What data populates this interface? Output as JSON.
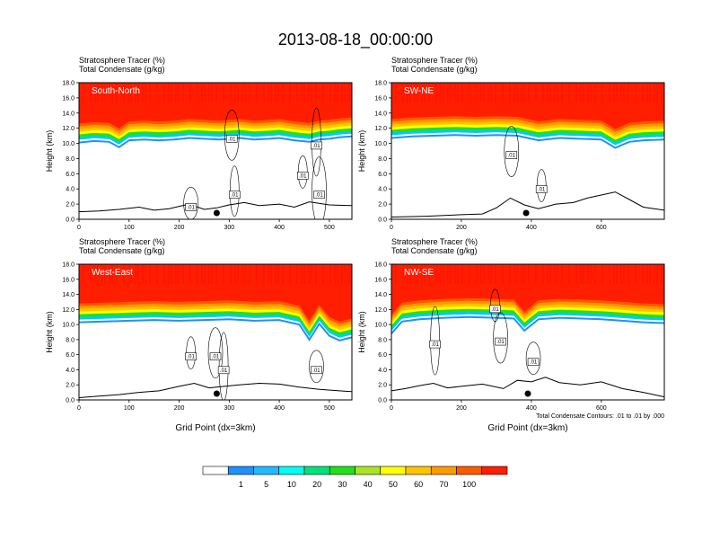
{
  "title": "2013-08-18_00:00:00",
  "chart_data": [
    {
      "type": "heatmap",
      "panel_label": "South-North",
      "subtitle_lines": [
        "Stratosphere Tracer   (%)",
        "Total Condensate   (g/kg)"
      ],
      "xlabel": "",
      "ylabel": "Height (km)",
      "xlim": [
        0,
        545
      ],
      "ylim": [
        0,
        18
      ],
      "x_ticks": [
        "0",
        "100",
        "200",
        "300",
        "400",
        "500"
      ],
      "y_ticks": [
        "0.0",
        "2.0",
        "4.0",
        "6.0",
        "8.0",
        "10.0",
        "12.0",
        "14.0",
        "16.0",
        "18.0"
      ],
      "tropopause_profile": {
        "x": [
          0,
          30,
          60,
          80,
          100,
          130,
          160,
          190,
          220,
          250,
          280,
          300,
          320,
          350,
          380,
          400,
          430,
          460,
          480,
          500,
          520,
          545
        ],
        "y": [
          12.6,
          12.8,
          12.7,
          12.0,
          12.9,
          13.0,
          12.9,
          13.0,
          13.2,
          13.1,
          13.0,
          13.1,
          13.2,
          13.0,
          13.1,
          13.2,
          12.9,
          12.7,
          13.0,
          13.1,
          13.3,
          13.4
        ]
      },
      "terrain": {
        "x": [
          0,
          40,
          80,
          120,
          150,
          180,
          200,
          220,
          250,
          275,
          300,
          330,
          360,
          400,
          430,
          460,
          500,
          545
        ],
        "y": [
          1.0,
          1.1,
          1.3,
          1.6,
          1.2,
          1.4,
          1.7,
          2.0,
          1.3,
          1.5,
          1.9,
          2.2,
          1.8,
          2.0,
          1.6,
          2.3,
          1.9,
          1.8
        ]
      },
      "marker_x": 275,
      "contour_labels": [
        ".01",
        ".01",
        ".01",
        ".01",
        ".01",
        ".01"
      ]
    },
    {
      "type": "heatmap",
      "panel_label": "SW-NE",
      "subtitle_lines": [
        "Stratosphere Tracer   (%)",
        "Total Condensate   (g/kg)"
      ],
      "xlabel": "",
      "ylabel": "Height (km)",
      "xlim": [
        0,
        780
      ],
      "ylim": [
        0,
        18
      ],
      "x_ticks": [
        "0",
        "200",
        "400",
        "600"
      ],
      "y_ticks": [
        "0.0",
        "2.0",
        "4.0",
        "6.0",
        "8.0",
        "10.0",
        "12.0",
        "14.0",
        "16.0",
        "18.0"
      ],
      "tropopause_profile": {
        "x": [
          0,
          60,
          120,
          180,
          240,
          300,
          360,
          420,
          480,
          540,
          600,
          640,
          680,
          720,
          780
        ],
        "y": [
          13.2,
          13.4,
          13.5,
          13.6,
          13.5,
          13.6,
          13.5,
          12.9,
          13.2,
          13.1,
          13.0,
          11.9,
          12.7,
          12.9,
          13.0
        ]
      },
      "terrain": {
        "x": [
          0,
          100,
          200,
          260,
          300,
          340,
          380,
          420,
          470,
          520,
          560,
          600,
          640,
          680,
          720,
          780
        ],
        "y": [
          0.3,
          0.4,
          0.6,
          0.7,
          1.5,
          2.8,
          1.9,
          1.4,
          2.0,
          2.2,
          2.8,
          3.2,
          3.6,
          2.6,
          1.6,
          1.2
        ]
      },
      "marker_x": 385,
      "contour_labels": [
        ".01",
        ".01"
      ]
    },
    {
      "type": "heatmap",
      "panel_label": "West-East",
      "subtitle_lines": [
        "Stratosphere Tracer   (%)",
        "Total Condensate   (g/kg)"
      ],
      "xlabel": "Grid Point (dx=3km)",
      "ylabel": "Height (km)",
      "xlim": [
        0,
        545
      ],
      "ylim": [
        0,
        18
      ],
      "x_ticks": [
        "0",
        "100",
        "200",
        "300",
        "400",
        "500"
      ],
      "y_ticks": [
        "0.0",
        "2.0",
        "4.0",
        "6.0",
        "8.0",
        "10.0",
        "12.0",
        "14.0",
        "16.0",
        "18.0"
      ],
      "tropopause_profile": {
        "x": [
          0,
          50,
          100,
          150,
          200,
          250,
          300,
          350,
          400,
          440,
          460,
          480,
          500,
          520,
          545
        ],
        "y": [
          12.8,
          12.9,
          13.0,
          13.1,
          13.0,
          13.1,
          13.2,
          13.0,
          13.1,
          12.5,
          10.5,
          12.6,
          11.0,
          10.4,
          10.8
        ]
      },
      "terrain": {
        "x": [
          0,
          40,
          80,
          120,
          160,
          200,
          230,
          260,
          290,
          320,
          360,
          400,
          440,
          480,
          520,
          545
        ],
        "y": [
          0.3,
          0.5,
          0.7,
          1.0,
          1.2,
          1.8,
          2.2,
          1.6,
          1.8,
          2.0,
          2.2,
          2.1,
          1.7,
          1.4,
          1.2,
          1.1
        ]
      },
      "marker_x": 275,
      "contour_labels": [
        ".01",
        ".01",
        ".01",
        ".01"
      ]
    },
    {
      "type": "heatmap",
      "panel_label": "NW-SE",
      "subtitle_lines": [
        "Stratosphere Tracer   (%)",
        "Total Condensate   (g/kg)"
      ],
      "xlabel": "Grid Point (dx=3km)",
      "ylabel": "Height (km)",
      "xlim": [
        0,
        780
      ],
      "ylim": [
        0,
        18
      ],
      "x_ticks": [
        "0",
        "200",
        "400",
        "600"
      ],
      "y_ticks": [
        "0.0",
        "2.0",
        "4.0",
        "6.0",
        "8.0",
        "10.0",
        "12.0",
        "14.0",
        "16.0",
        "18.0"
      ],
      "tropopause_profile": {
        "x": [
          0,
          30,
          80,
          150,
          220,
          300,
          350,
          380,
          420,
          480,
          540,
          600,
          660,
          720,
          780
        ],
        "y": [
          11.3,
          12.9,
          13.2,
          13.4,
          13.5,
          13.4,
          13.3,
          11.7,
          13.2,
          13.4,
          13.3,
          13.2,
          13.0,
          12.8,
          12.7
        ]
      },
      "terrain": {
        "x": [
          0,
          40,
          80,
          120,
          160,
          200,
          260,
          320,
          360,
          400,
          440,
          480,
          540,
          600,
          660,
          720,
          780
        ],
        "y": [
          1.2,
          1.5,
          1.9,
          2.2,
          1.6,
          1.8,
          2.1,
          1.5,
          2.6,
          2.4,
          3.0,
          2.3,
          2.0,
          2.4,
          1.5,
          1.0,
          0.4
        ]
      },
      "marker_x": 390,
      "contour_labels": [
        ".01",
        ".01",
        ".01",
        ".01"
      ],
      "note": "Total Condensate Contours: .01 to .01 by .000"
    }
  ],
  "colorbar": {
    "levels": [
      "1",
      "5",
      "10",
      "20",
      "30",
      "40",
      "50",
      "60",
      "70",
      "100"
    ],
    "colors": [
      "#ffffff",
      "#1e90ff",
      "#00c8ff",
      "#00ffee",
      "#00e37a",
      "#22e01a",
      "#a8e623",
      "#ffff00",
      "#ffc400",
      "#ff9a00",
      "#ff5a00",
      "#ff1e00"
    ]
  }
}
